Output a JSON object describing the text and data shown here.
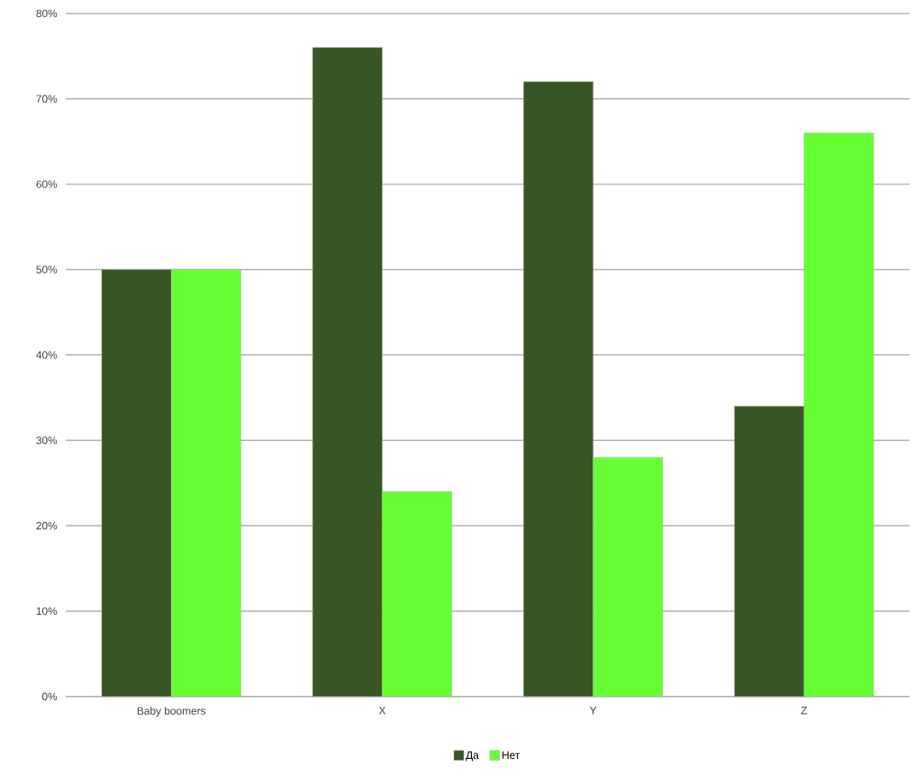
{
  "chart_data": {
    "type": "bar",
    "categories": [
      "Baby boomers",
      "X",
      "Y",
      "Z"
    ],
    "series": [
      {
        "name": "Да",
        "color": "#375623",
        "values": [
          50,
          76,
          72,
          34
        ]
      },
      {
        "name": "Нет",
        "color": "#66ff33",
        "values": [
          50,
          24,
          28,
          66
        ]
      }
    ],
    "ylim": [
      0,
      80
    ],
    "yticks": [
      {
        "value": 0,
        "label": "0%"
      },
      {
        "value": 10,
        "label": "10%"
      },
      {
        "value": 20,
        "label": "20%"
      },
      {
        "value": 30,
        "label": "30%"
      },
      {
        "value": 40,
        "label": "40%"
      },
      {
        "value": 50,
        "label": "50%"
      },
      {
        "value": 60,
        "label": "60%"
      },
      {
        "value": 70,
        "label": "70%"
      },
      {
        "value": 80,
        "label": "80%"
      }
    ],
    "grid": "y",
    "legend": "bottom"
  }
}
